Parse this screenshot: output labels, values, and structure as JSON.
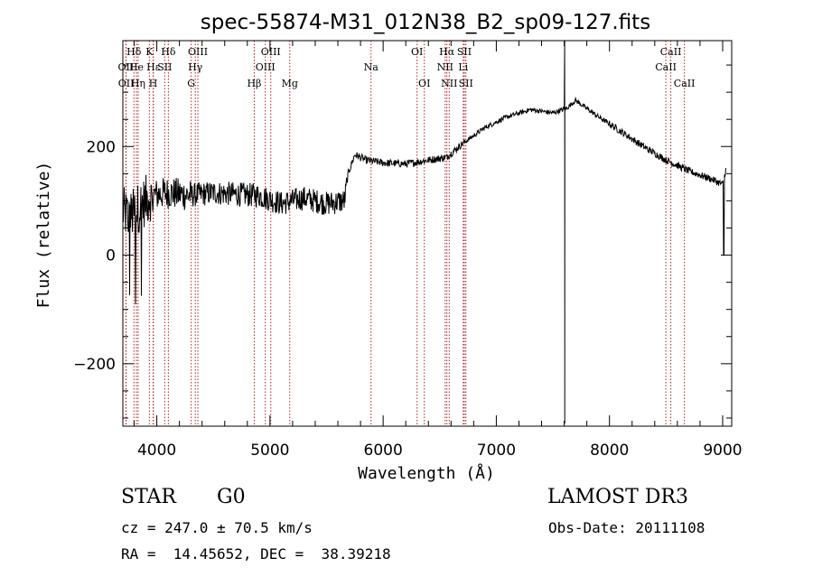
{
  "chart_data": {
    "type": "line",
    "title": "spec-55874-M31_012N38_B2_sp09-127.fits",
    "xlabel": "Wavelength (Å)",
    "ylabel": "Flux (relative)",
    "xlim": [
      3700,
      9080
    ],
    "ylim": [
      -315,
      395
    ],
    "xticks": [
      4000,
      5000,
      6000,
      7000,
      8000,
      9000
    ],
    "yticks": [
      -200,
      0,
      200
    ],
    "grid": false,
    "colors": {
      "spectrum": "#000000",
      "lines": "#b22222"
    },
    "spectrum_envelope": {
      "anchors": [
        [
          3700,
          80
        ],
        [
          3760,
          70
        ],
        [
          3850,
          90
        ],
        [
          3950,
          110
        ],
        [
          4100,
          115
        ],
        [
          4300,
          110
        ],
        [
          4500,
          115
        ],
        [
          4700,
          112
        ],
        [
          4900,
          110
        ],
        [
          5100,
          95
        ],
        [
          5300,
          105
        ],
        [
          5500,
          95
        ],
        [
          5660,
          100
        ],
        [
          5690,
          150
        ],
        [
          5750,
          185
        ],
        [
          5850,
          175
        ],
        [
          6000,
          170
        ],
        [
          6200,
          168
        ],
        [
          6400,
          175
        ],
        [
          6560,
          180
        ],
        [
          6700,
          205
        ],
        [
          6900,
          235
        ],
        [
          7100,
          255
        ],
        [
          7300,
          268
        ],
        [
          7500,
          262
        ],
        [
          7620,
          270
        ],
        [
          7700,
          285
        ],
        [
          7900,
          255
        ],
        [
          8100,
          228
        ],
        [
          8300,
          200
        ],
        [
          8500,
          175
        ],
        [
          8700,
          155
        ],
        [
          8900,
          140
        ],
        [
          9000,
          130
        ],
        [
          9030,
          160
        ]
      ],
      "features": [
        {
          "name": "telluric-A-band",
          "x": 7605,
          "min": -310,
          "max": 390
        },
        {
          "name": "red-edge-drop",
          "x": 9010,
          "min": 0
        }
      ]
    },
    "line_markers": [
      {
        "label": "OII",
        "x": 3727,
        "row": 2
      },
      {
        "label": "OII",
        "x": 3729,
        "row": 3
      },
      {
        "label": "Hδ",
        "x": 3798,
        "row": 1
      },
      {
        "label": "He",
        "x": 3820,
        "row": 2
      },
      {
        "label": "Hη",
        "x": 3835,
        "row": 3
      },
      {
        "label": "K",
        "x": 3934,
        "row": 1
      },
      {
        "label": "Hε",
        "x": 3970,
        "row": 2
      },
      {
        "label": "SII",
        "x": 4070,
        "row": 2
      },
      {
        "label": "H",
        "x": 3968,
        "row": 3
      },
      {
        "label": "Hδ",
        "x": 4102,
        "row": 1
      },
      {
        "label": "OIII",
        "x": 4363,
        "row": 1
      },
      {
        "label": "Hγ",
        "x": 4340,
        "row": 2
      },
      {
        "label": "G",
        "x": 4304,
        "row": 3
      },
      {
        "label": "OIII",
        "x": 5007,
        "row": 1
      },
      {
        "label": "OIII",
        "x": 4959,
        "row": 2
      },
      {
        "label": "Hβ",
        "x": 4861,
        "row": 3
      },
      {
        "label": "Mg",
        "x": 5175,
        "row": 3
      },
      {
        "label": "Na",
        "x": 5893,
        "row": 2
      },
      {
        "label": "OI",
        "x": 6300,
        "row": 1
      },
      {
        "label": "OI",
        "x": 6364,
        "row": 3
      },
      {
        "label": "Hα",
        "x": 6563,
        "row": 1
      },
      {
        "label": "NII",
        "x": 6548,
        "row": 2
      },
      {
        "label": "NII",
        "x": 6584,
        "row": 3
      },
      {
        "label": "SII",
        "x": 6717,
        "row": 1
      },
      {
        "label": "Li",
        "x": 6708,
        "row": 2
      },
      {
        "label": "SII",
        "x": 6731,
        "row": 3
      },
      {
        "label": "CaII",
        "x": 8542,
        "row": 1
      },
      {
        "label": "CaII",
        "x": 8498,
        "row": 2
      },
      {
        "label": "CaII",
        "x": 8662,
        "row": 3
      }
    ]
  },
  "info": {
    "object_type": "STAR",
    "subclass": "G0",
    "survey": "LAMOST DR3",
    "velocity": "cz = 247.0 ± 70.5 km/s",
    "obs_date": "Obs-Date: 20111108",
    "coords": "RA =  14.45652, DEC =  38.39218"
  }
}
